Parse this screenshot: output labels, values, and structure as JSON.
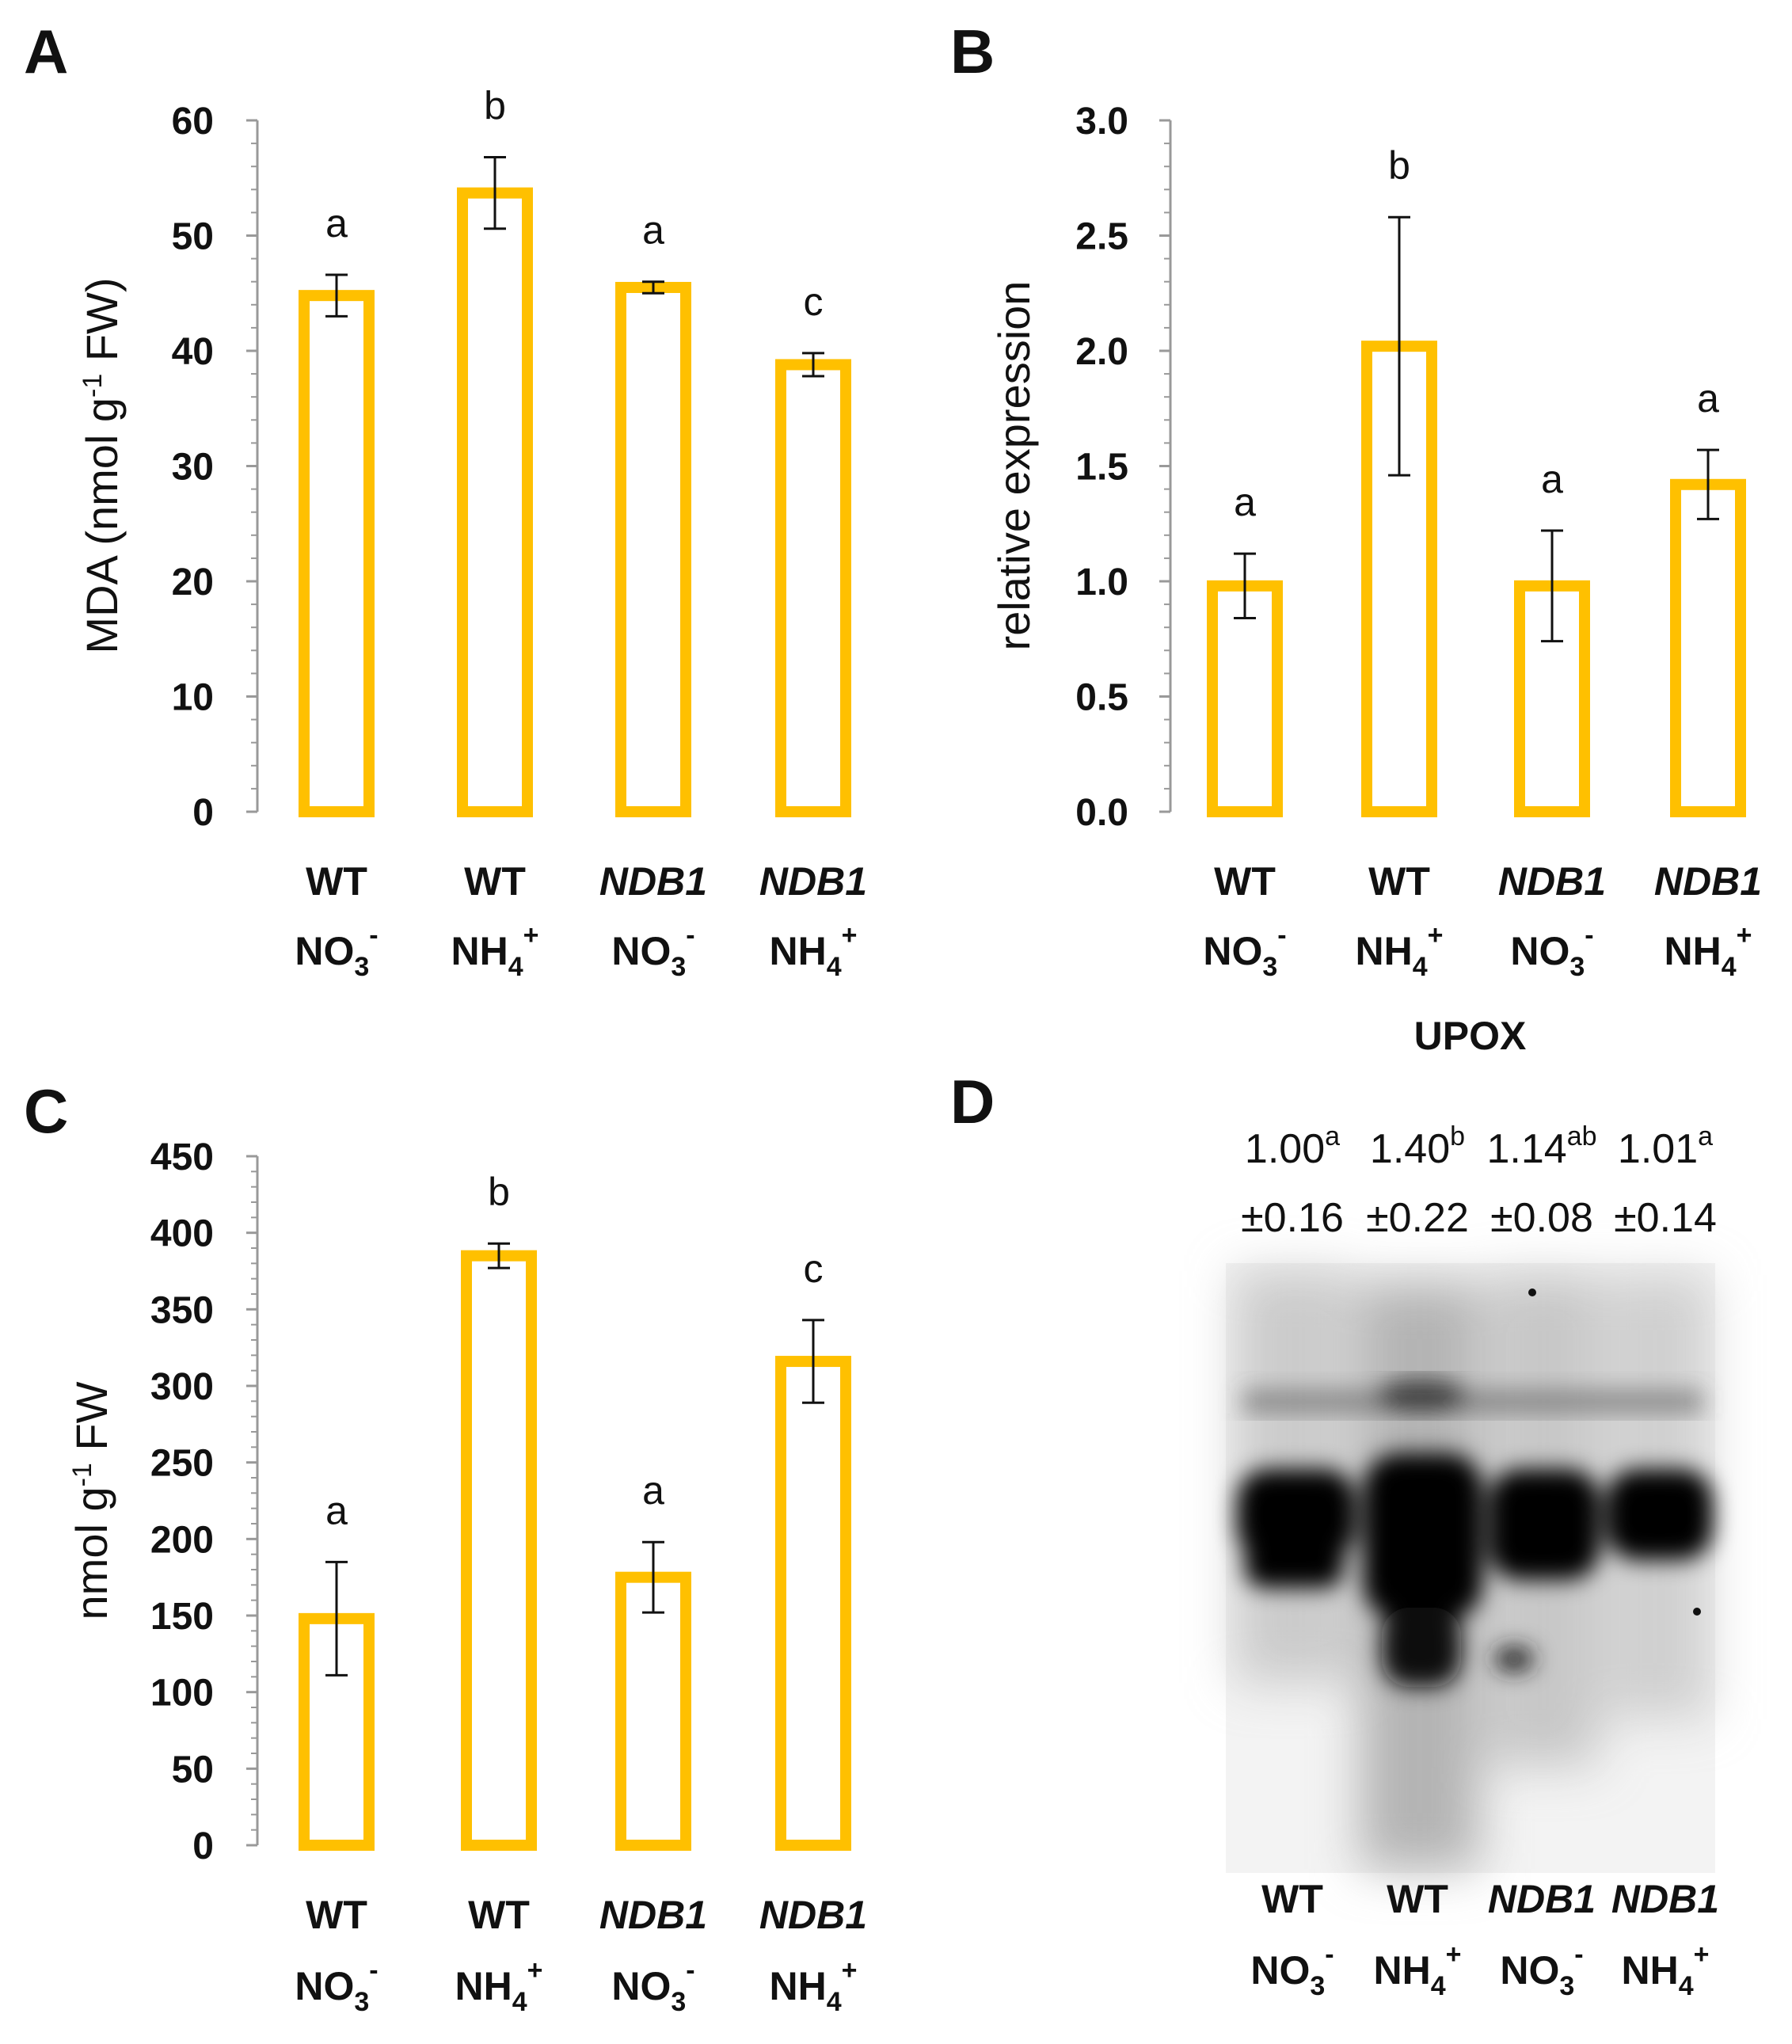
{
  "colors": {
    "bar": "#FFC000",
    "error": "#111111",
    "axis": "#999999"
  },
  "panels": [
    {
      "id": "A",
      "label": "A",
      "chart_data": {
        "type": "bar",
        "title": "",
        "ylabel_parts": [
          "MDA (nmol g",
          "-1",
          " FW)"
        ],
        "ylim": [
          0,
          60
        ],
        "yticks": [
          0,
          10,
          20,
          30,
          40,
          50,
          60
        ],
        "yticklabels": [
          "0",
          "10",
          "20",
          "30",
          "40",
          "50",
          "60"
        ],
        "categories": [
          {
            "genotype": "WT",
            "italic": false,
            "ion": "NO",
            "ion_sub": "3",
            "ion_sup": "-"
          },
          {
            "genotype": "WT",
            "italic": false,
            "ion": "NH",
            "ion_sub": "4",
            "ion_sup": "+"
          },
          {
            "genotype": "NDB1",
            "italic": true,
            "ion": "NO",
            "ion_sub": "3",
            "ion_sup": "-"
          },
          {
            "genotype": "NDB1",
            "italic": true,
            "ion": "NH",
            "ion_sub": "4",
            "ion_sup": "+"
          }
        ],
        "values": [
          44.8,
          53.7,
          45.5,
          38.8
        ],
        "errors": [
          1.8,
          3.1,
          0.5,
          1.0
        ],
        "significance": [
          "a",
          "b",
          "a",
          "c"
        ],
        "xlabel": ""
      }
    },
    {
      "id": "B",
      "label": "B",
      "chart_data": {
        "type": "bar",
        "title": "",
        "ylabel_parts": [
          "relative expression"
        ],
        "ylim": [
          0,
          3.0
        ],
        "yticks": [
          0,
          0.5,
          1.0,
          1.5,
          2.0,
          2.5,
          3.0
        ],
        "yticklabels": [
          "0.0",
          "0.5",
          "1.0",
          "1.5",
          "2.0",
          "2.5",
          "3.0"
        ],
        "categories": [
          {
            "genotype": "WT",
            "italic": false,
            "ion": "NO",
            "ion_sub": "3",
            "ion_sup": "-"
          },
          {
            "genotype": "WT",
            "italic": false,
            "ion": "NH",
            "ion_sub": "4",
            "ion_sup": "+"
          },
          {
            "genotype": "NDB1",
            "italic": true,
            "ion": "NO",
            "ion_sub": "3",
            "ion_sup": "-"
          },
          {
            "genotype": "NDB1",
            "italic": true,
            "ion": "NH",
            "ion_sub": "4",
            "ion_sup": "+"
          }
        ],
        "values": [
          0.98,
          2.02,
          0.98,
          1.42
        ],
        "errors": [
          0.14,
          0.56,
          0.24,
          0.15
        ],
        "significance": [
          "a",
          "b",
          "a",
          "a"
        ],
        "xlabel": "UPOX"
      }
    },
    {
      "id": "C",
      "label": "C",
      "chart_data": {
        "type": "bar",
        "title": "",
        "ylabel_parts": [
          "nmol g",
          "-1",
          " FW"
        ],
        "ylim": [
          0,
          450
        ],
        "yticks": [
          0,
          50,
          100,
          150,
          200,
          250,
          300,
          350,
          400,
          450
        ],
        "yticklabels": [
          "0",
          "50",
          "100",
          "150",
          "200",
          "250",
          "300",
          "350",
          "400",
          "450"
        ],
        "categories": [
          {
            "genotype": "WT",
            "italic": false,
            "ion": "NO",
            "ion_sub": "3",
            "ion_sup": "-"
          },
          {
            "genotype": "WT",
            "italic": false,
            "ion": "NH",
            "ion_sub": "4",
            "ion_sup": "+"
          },
          {
            "genotype": "NDB1",
            "italic": true,
            "ion": "NO",
            "ion_sub": "3",
            "ion_sup": "-"
          },
          {
            "genotype": "NDB1",
            "italic": true,
            "ion": "NH",
            "ion_sub": "4",
            "ion_sup": "+"
          }
        ],
        "values": [
          148,
          385,
          175,
          316
        ],
        "errors": [
          37,
          8,
          23,
          27
        ],
        "significance": [
          "a",
          "b",
          "a",
          "c"
        ],
        "xlabel": ""
      }
    }
  ],
  "blot": {
    "label": "D",
    "lanes": [
      {
        "value": "1.00",
        "letter": "a",
        "sd": "±0.16",
        "genotype": "WT",
        "italic": false,
        "ion": "NO",
        "ion_sub": "3",
        "ion_sup": "-"
      },
      {
        "value": "1.40",
        "letter": "b",
        "sd": "±0.22",
        "genotype": "WT",
        "italic": false,
        "ion": "NH",
        "ion_sub": "4",
        "ion_sup": "+"
      },
      {
        "value": "1.14",
        "letter": "ab",
        "sd": "±0.08",
        "genotype": "NDB1",
        "italic": true,
        "ion": "NO",
        "ion_sub": "3",
        "ion_sup": "-"
      },
      {
        "value": "1.01",
        "letter": "a",
        "sd": "±0.14",
        "genotype": "NDB1",
        "italic": true,
        "ion": "NH",
        "ion_sub": "4",
        "ion_sup": "+"
      }
    ]
  }
}
